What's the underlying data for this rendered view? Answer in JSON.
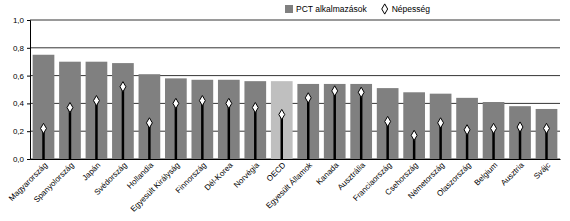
{
  "chart_data": {
    "type": "bar",
    "categories": [
      "Magyarország",
      "Spanyolország",
      "Japán",
      "Svédország",
      "Hollandia",
      "Egyesült Királyság",
      "Finnország",
      "Dél-Korea",
      "Norvégia",
      "OECD",
      "Egyesült Államok",
      "Kanada",
      "Ausztrália",
      "Franciaország",
      "Csehország",
      "Németország",
      "Olaszország",
      "Belgium",
      "Ausztria",
      "Svájc"
    ],
    "series": [
      {
        "name": "PCT alkalmazások",
        "type": "bar",
        "color": "#808080",
        "colors": [
          "#808080",
          "#808080",
          "#808080",
          "#808080",
          "#808080",
          "#808080",
          "#808080",
          "#808080",
          "#808080",
          "#bfbfbf",
          "#808080",
          "#808080",
          "#808080",
          "#808080",
          "#808080",
          "#808080",
          "#808080",
          "#808080",
          "#808080",
          "#808080"
        ],
        "values": [
          0.75,
          0.7,
          0.7,
          0.69,
          0.61,
          0.58,
          0.57,
          0.57,
          0.56,
          0.56,
          0.54,
          0.54,
          0.54,
          0.51,
          0.48,
          0.47,
          0.44,
          0.41,
          0.38,
          0.36
        ]
      },
      {
        "name": "Népesség",
        "type": "lollipop",
        "marker": "diamond",
        "color": "#000000",
        "values": [
          0.22,
          0.37,
          0.42,
          0.52,
          0.26,
          0.4,
          0.42,
          0.4,
          0.37,
          0.32,
          0.44,
          0.49,
          0.48,
          0.27,
          0.17,
          0.26,
          0.21,
          0.22,
          0.23,
          0.22
        ]
      }
    ],
    "ylim": [
      0,
      1
    ],
    "yticks": [
      {
        "value": 0,
        "label": "0,0"
      },
      {
        "value": 0.2,
        "label": "0,2"
      },
      {
        "value": 0.4,
        "label": "0,4"
      },
      {
        "value": 0.6,
        "label": "0,6"
      },
      {
        "value": 0.8,
        "label": "0,8"
      },
      {
        "value": 1,
        "label": "1,0"
      }
    ],
    "grid": true,
    "legend": "top"
  }
}
